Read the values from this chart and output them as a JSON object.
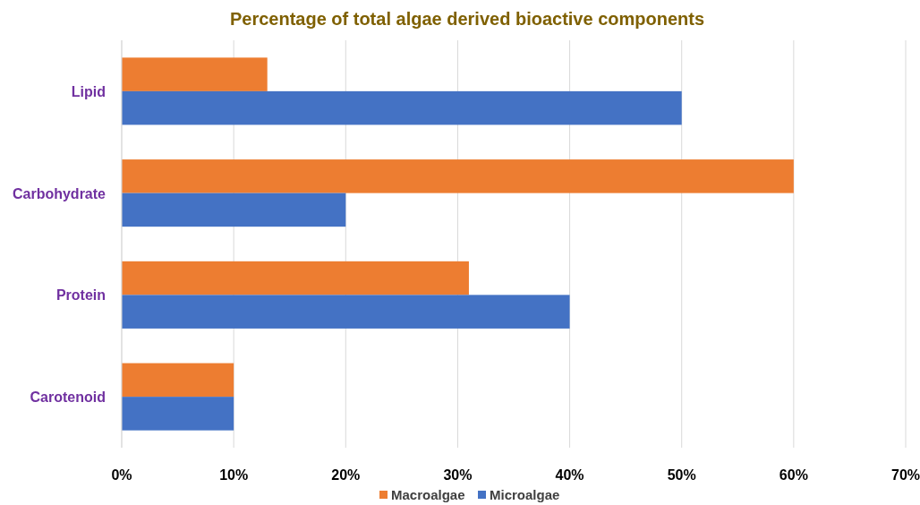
{
  "chart_data": {
    "type": "bar",
    "orientation": "horizontal",
    "title": "Percentage of total algae derived bioactive components",
    "categories": [
      "Lipid",
      "Carbohydrate",
      "Protein",
      "Carotenoid"
    ],
    "series": [
      {
        "name": "Macroalgae",
        "color": "#ed7d31",
        "values": [
          13,
          60,
          31,
          10
        ]
      },
      {
        "name": "Microalgae",
        "color": "#4472c4",
        "values": [
          50,
          20,
          40,
          10
        ]
      }
    ],
    "xlim": [
      0,
      70
    ],
    "xticks": [
      {
        "value": 0,
        "label": "0%"
      },
      {
        "value": 10,
        "label": "10%"
      },
      {
        "value": 20,
        "label": "20%"
      },
      {
        "value": 30,
        "label": "30%"
      },
      {
        "value": 40,
        "label": "40%"
      },
      {
        "value": 50,
        "label": "50%"
      },
      {
        "value": 60,
        "label": "60%"
      },
      {
        "value": 70,
        "label": "70%"
      }
    ],
    "grid": "x",
    "legend": "bottom"
  }
}
